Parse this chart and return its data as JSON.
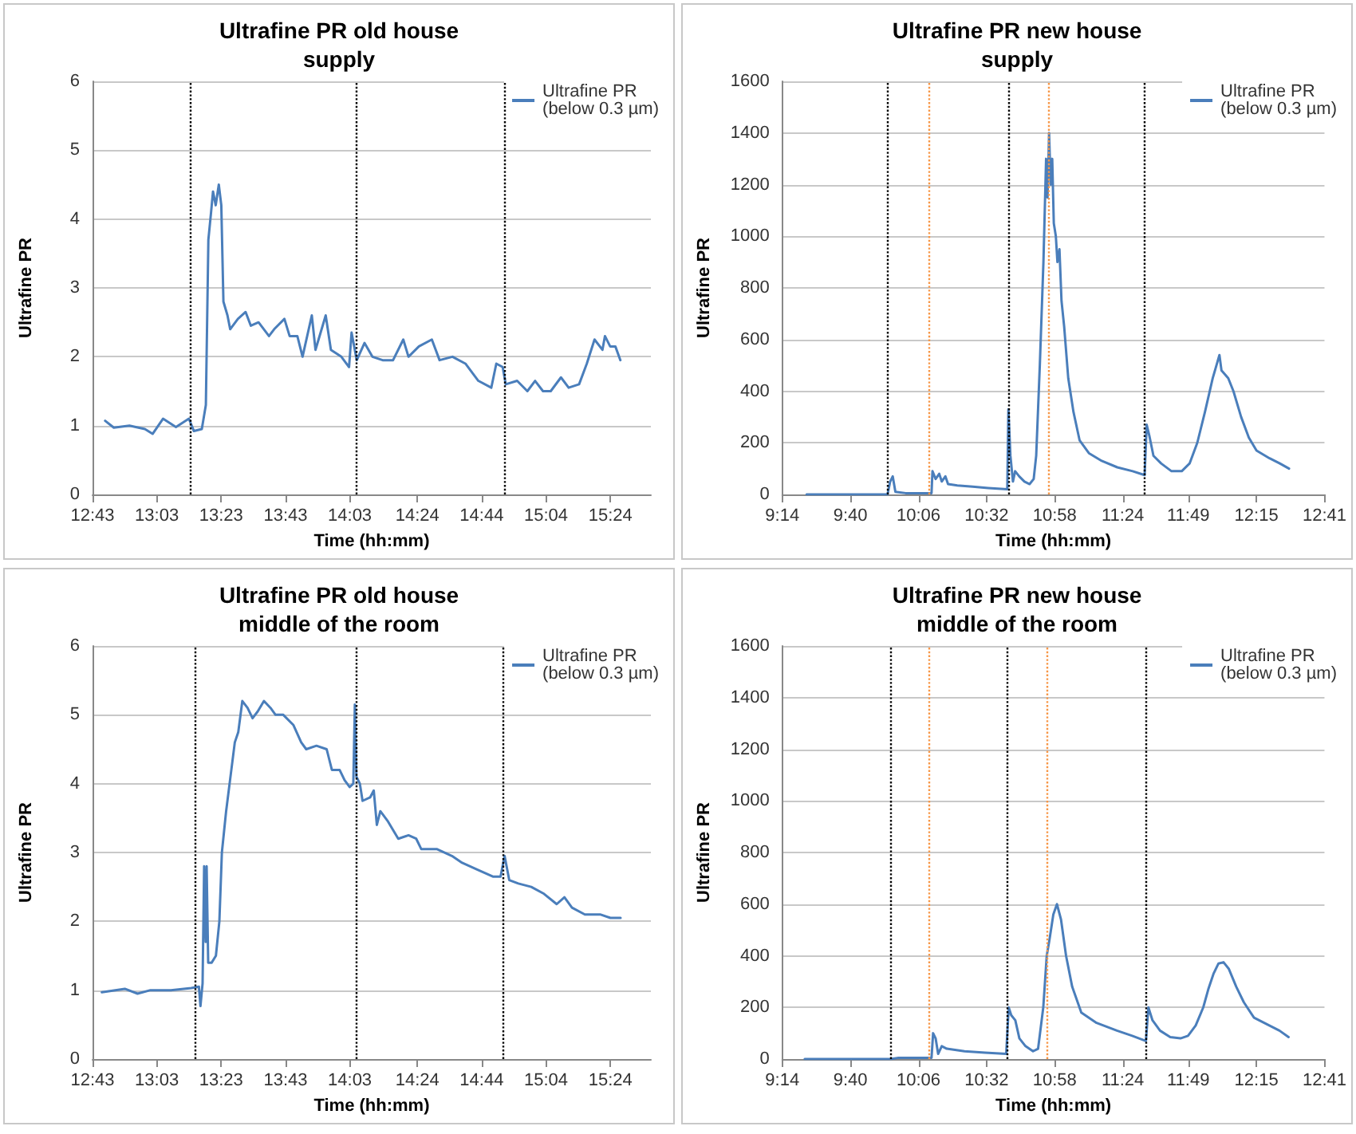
{
  "chart_data": [
    {
      "type": "line",
      "title": "Ultrafine PR old house",
      "subtitle": "supply",
      "xlabel": "Time (hh:mm)",
      "ylabel": "Ultrafine PR",
      "xlim": [
        12.7167,
        15.61
      ],
      "xticks": [
        {
          "value": 12.7167,
          "label": "12:43"
        },
        {
          "value": 13.05,
          "label": "13:03"
        },
        {
          "value": 13.3833,
          "label": "13:23"
        },
        {
          "value": 13.7167,
          "label": "13:43"
        },
        {
          "value": 14.05,
          "label": "14:03"
        },
        {
          "value": 14.4,
          "label": "14:24"
        },
        {
          "value": 14.7333,
          "label": "14:44"
        },
        {
          "value": 15.0667,
          "label": "15:04"
        },
        {
          "value": 15.4,
          "label": "15:24"
        }
      ],
      "ylim": [
        0,
        6
      ],
      "yticks": [
        0,
        1,
        2,
        3,
        4,
        5,
        6
      ],
      "grid": "y",
      "legend": "top right",
      "marker": "none",
      "line_style": "solid",
      "ref_lines": [
        {
          "axis": "x",
          "value": 13.22,
          "color": "#000000",
          "line_style": "dotted"
        },
        {
          "axis": "x",
          "value": 14.08,
          "color": "#000000",
          "line_style": "dotted"
        },
        {
          "axis": "x",
          "value": 14.85,
          "color": "#000000",
          "line_style": "dotted"
        }
      ],
      "series": [
        {
          "name": "Ultrafine PR (below 0.3 µm)",
          "color": "#4a7ebb",
          "x": [
            12.782,
            12.827,
            12.908,
            12.988,
            13.028,
            13.082,
            13.149,
            13.216,
            13.242,
            13.283,
            13.304,
            13.317,
            13.331,
            13.341,
            13.355,
            13.371,
            13.384,
            13.395,
            13.416,
            13.43,
            13.47,
            13.51,
            13.537,
            13.577,
            13.631,
            13.658,
            13.711,
            13.738,
            13.778,
            13.805,
            13.853,
            13.872,
            13.925,
            13.952,
            14.006,
            14.046,
            14.059,
            14.086,
            14.126,
            14.167,
            14.22,
            14.274,
            14.327,
            14.354,
            14.408,
            14.475,
            14.515,
            14.582,
            14.649,
            14.689,
            14.716,
            14.783,
            14.809,
            14.842,
            14.858,
            14.917,
            14.97,
            15.01,
            15.051,
            15.091,
            15.144,
            15.184,
            15.238,
            15.278,
            15.318,
            15.359,
            15.372,
            15.399,
            15.426,
            15.452
          ],
          "values": [
            1.07,
            0.97,
            1.0,
            0.95,
            0.88,
            1.1,
            0.98,
            1.1,
            0.92,
            0.95,
            1.3,
            3.7,
            4.1,
            4.4,
            4.2,
            4.5,
            4.2,
            2.8,
            2.6,
            2.4,
            2.55,
            2.65,
            2.45,
            2.5,
            2.3,
            2.4,
            2.55,
            2.3,
            2.3,
            2.0,
            2.6,
            2.1,
            2.6,
            2.1,
            2.0,
            1.85,
            2.35,
            1.95,
            2.2,
            2.0,
            1.95,
            1.95,
            2.25,
            2.0,
            2.15,
            2.25,
            1.95,
            2.0,
            1.9,
            1.75,
            1.65,
            1.55,
            1.9,
            1.85,
            1.6,
            1.65,
            1.5,
            1.65,
            1.5,
            1.5,
            1.7,
            1.55,
            1.6,
            1.9,
            2.25,
            2.1,
            2.3,
            2.15,
            2.15,
            1.95
          ]
        }
      ]
    },
    {
      "type": "line",
      "title": "Ultrafine PR new house",
      "subtitle": "supply",
      "xlabel": "Time (hh:mm)",
      "ylabel": "Ultrafine PR",
      "xlim": [
        9.2333,
        12.6833
      ],
      "xticks": [
        {
          "value": 9.2333,
          "label": "9:14"
        },
        {
          "value": 9.6667,
          "label": "9:40"
        },
        {
          "value": 10.1,
          "label": "10:06"
        },
        {
          "value": 10.5333,
          "label": "10:32"
        },
        {
          "value": 10.9667,
          "label": "10:58"
        },
        {
          "value": 11.4,
          "label": "11:24"
        },
        {
          "value": 11.8167,
          "label": "11:49"
        },
        {
          "value": 12.25,
          "label": "12:15"
        },
        {
          "value": 12.6833,
          "label": "12:41"
        }
      ],
      "ylim": [
        0,
        1600
      ],
      "yticks": [
        0,
        200,
        400,
        600,
        800,
        1000,
        1200,
        1400,
        1600
      ],
      "grid": "y",
      "legend": "top right",
      "marker": "none",
      "line_style": "solid",
      "ref_lines": [
        {
          "axis": "x",
          "value": 9.897,
          "color": "#000000",
          "line_style": "dotted"
        },
        {
          "axis": "x",
          "value": 10.173,
          "color": "#f79646",
          "line_style": "dotted"
        },
        {
          "axis": "x",
          "value": 10.669,
          "color": "#000000",
          "line_style": "dotted"
        },
        {
          "axis": "x",
          "value": 10.925,
          "color": "#f79646",
          "line_style": "dotted"
        },
        {
          "axis": "x",
          "value": 11.545,
          "color": "#000000",
          "line_style": "dotted"
        }
      ],
      "series": [
        {
          "name": "Ultrafine PR (below 0.3 µm)",
          "color": "#4a7ebb",
          "x": [
            9.388,
            9.903,
            9.92,
            9.936,
            9.953,
            10.018,
            10.183,
            10.189,
            10.209,
            10.232,
            10.248,
            10.271,
            10.288,
            10.347,
            10.445,
            10.544,
            10.665,
            10.672,
            10.685,
            10.701,
            10.715,
            10.741,
            10.774,
            10.807,
            10.833,
            10.849,
            10.872,
            10.895,
            10.912,
            10.921,
            10.931,
            10.941,
            10.951,
            10.961,
            10.974,
            10.984,
            10.997,
            11.01,
            11.027,
            11.053,
            11.086,
            11.125,
            11.184,
            11.266,
            11.365,
            11.463,
            11.539,
            11.552,
            11.568,
            11.595,
            11.644,
            11.71,
            11.775,
            11.825,
            11.874,
            11.923,
            11.972,
            12.015,
            12.028,
            12.071,
            12.104,
            12.153,
            12.202,
            12.251,
            12.334,
            12.399,
            12.458
          ],
          "values": [
            0,
            0,
            50,
            70,
            10,
            5,
            5,
            90,
            60,
            80,
            50,
            70,
            40,
            35,
            30,
            25,
            20,
            330,
            150,
            50,
            90,
            70,
            50,
            40,
            60,
            150,
            500,
            900,
            1300,
            1150,
            1400,
            1200,
            1300,
            1050,
            1000,
            900,
            950,
            750,
            650,
            450,
            320,
            210,
            160,
            130,
            105,
            90,
            75,
            270,
            230,
            150,
            120,
            90,
            90,
            120,
            200,
            320,
            450,
            540,
            480,
            450,
            400,
            300,
            220,
            170,
            140,
            120,
            100
          ]
        }
      ]
    },
    {
      "type": "line",
      "title": "Ultrafine PR old house",
      "subtitle": "middle of the room",
      "xlabel": "Time (hh:mm)",
      "ylabel": "Ultrafine PR",
      "xlim": [
        12.7167,
        15.61
      ],
      "xticks": [
        {
          "value": 12.7167,
          "label": "12:43"
        },
        {
          "value": 13.05,
          "label": "13:03"
        },
        {
          "value": 13.3833,
          "label": "13:23"
        },
        {
          "value": 13.7167,
          "label": "13:43"
        },
        {
          "value": 14.05,
          "label": "14:03"
        },
        {
          "value": 14.4,
          "label": "14:24"
        },
        {
          "value": 14.7333,
          "label": "14:44"
        },
        {
          "value": 15.0667,
          "label": "15:04"
        },
        {
          "value": 15.4,
          "label": "15:24"
        }
      ],
      "ylim": [
        0,
        6
      ],
      "yticks": [
        0,
        1,
        2,
        3,
        4,
        5,
        6
      ],
      "grid": "y",
      "legend": "top right",
      "marker": "none",
      "line_style": "solid",
      "ref_lines": [
        {
          "axis": "x",
          "value": 13.25,
          "color": "#000000",
          "line_style": "dotted"
        },
        {
          "axis": "x",
          "value": 14.076,
          "color": "#000000",
          "line_style": "dotted"
        },
        {
          "axis": "x",
          "value": 14.844,
          "color": "#000000",
          "line_style": "dotted"
        }
      ],
      "series": [
        {
          "name": "Ultrafine PR (below 0.3 µm)",
          "color": "#4a7ebb",
          "x": [
            12.765,
            12.884,
            12.95,
            13.017,
            13.123,
            13.228,
            13.268,
            13.276,
            13.287,
            13.295,
            13.303,
            13.308,
            13.316,
            13.334,
            13.356,
            13.374,
            13.387,
            13.409,
            13.427,
            13.454,
            13.472,
            13.493,
            13.52,
            13.546,
            13.573,
            13.605,
            13.639,
            13.665,
            13.705,
            13.758,
            13.798,
            13.824,
            13.877,
            13.93,
            13.957,
            13.997,
            14.023,
            14.049,
            14.068,
            14.076,
            14.084,
            14.102,
            14.116,
            14.155,
            14.174,
            14.19,
            14.208,
            14.248,
            14.301,
            14.354,
            14.394,
            14.42,
            14.5,
            14.579,
            14.632,
            14.712,
            14.791,
            14.831,
            14.852,
            14.876,
            14.923,
            14.99,
            15.056,
            15.122,
            15.162,
            15.201,
            15.268,
            15.347,
            15.4,
            15.453
          ],
          "values": [
            0.97,
            1.02,
            0.95,
            1.0,
            1.0,
            1.03,
            1.05,
            0.77,
            1.1,
            2.8,
            1.7,
            2.8,
            1.4,
            1.4,
            1.5,
            2.0,
            3.0,
            3.6,
            4.0,
            4.6,
            4.75,
            5.2,
            5.1,
            4.95,
            5.05,
            5.2,
            5.1,
            5.0,
            5.0,
            4.85,
            4.6,
            4.5,
            4.55,
            4.5,
            4.2,
            4.2,
            4.05,
            3.95,
            4.0,
            5.15,
            4.1,
            4.0,
            3.75,
            3.8,
            3.9,
            3.4,
            3.6,
            3.45,
            3.2,
            3.25,
            3.2,
            3.05,
            3.05,
            2.95,
            2.85,
            2.75,
            2.65,
            2.65,
            2.95,
            2.6,
            2.55,
            2.5,
            2.4,
            2.25,
            2.35,
            2.2,
            2.1,
            2.1,
            2.05,
            2.05
          ]
        }
      ]
    },
    {
      "type": "line",
      "title": "Ultrafine PR new house",
      "subtitle": "middle of the room",
      "xlabel": "Time (hh:mm)",
      "ylabel": "Ultrafine PR",
      "xlim": [
        9.2333,
        12.6833
      ],
      "xticks": [
        {
          "value": 9.2333,
          "label": "9:14"
        },
        {
          "value": 9.6667,
          "label": "9:40"
        },
        {
          "value": 10.1,
          "label": "10:06"
        },
        {
          "value": 10.5333,
          "label": "10:32"
        },
        {
          "value": 10.9667,
          "label": "10:58"
        },
        {
          "value": 11.4,
          "label": "11:24"
        },
        {
          "value": 11.8167,
          "label": "11:49"
        },
        {
          "value": 12.25,
          "label": "12:15"
        },
        {
          "value": 12.6833,
          "label": "12:41"
        }
      ],
      "ylim": [
        0,
        1600
      ],
      "yticks": [
        0,
        200,
        400,
        600,
        800,
        1000,
        1200,
        1400,
        1600
      ],
      "grid": "y",
      "legend": "top right",
      "marker": "none",
      "line_style": "solid",
      "ref_lines": [
        {
          "axis": "x",
          "value": 9.919,
          "color": "#000000",
          "line_style": "dotted"
        },
        {
          "axis": "x",
          "value": 10.167,
          "color": "#f79646",
          "line_style": "dotted"
        },
        {
          "axis": "x",
          "value": 10.658,
          "color": "#000000",
          "line_style": "dotted"
        },
        {
          "axis": "x",
          "value": 10.923,
          "color": "#f79646",
          "line_style": "dotted"
        },
        {
          "axis": "x",
          "value": 11.547,
          "color": "#000000",
          "line_style": "dotted"
        }
      ],
      "series": [
        {
          "name": "Ultrafine PR (below 0.3 µm)",
          "color": "#4a7ebb",
          "x": [
            9.376,
            9.925,
            9.973,
            10.183,
            10.193,
            10.209,
            10.225,
            10.248,
            10.28,
            10.393,
            10.523,
            10.658,
            10.674,
            10.69,
            10.716,
            10.742,
            10.781,
            10.829,
            10.861,
            10.894,
            10.916,
            10.933,
            10.958,
            10.981,
            11.007,
            11.039,
            11.078,
            11.136,
            11.233,
            11.363,
            11.46,
            11.547,
            11.563,
            11.589,
            11.637,
            11.702,
            11.767,
            11.815,
            11.864,
            11.912,
            11.944,
            11.977,
            12.009,
            12.041,
            12.074,
            12.122,
            12.17,
            12.235,
            12.332,
            12.397,
            12.455
          ],
          "values": [
            0,
            0,
            5,
            5,
            100,
            80,
            20,
            50,
            40,
            30,
            25,
            20,
            200,
            170,
            150,
            80,
            50,
            30,
            40,
            200,
            400,
            460,
            560,
            600,
            540,
            400,
            280,
            180,
            140,
            110,
            90,
            70,
            200,
            150,
            110,
            85,
            80,
            90,
            130,
            200,
            270,
            330,
            370,
            375,
            350,
            280,
            220,
            160,
            130,
            110,
            85
          ]
        }
      ]
    }
  ]
}
